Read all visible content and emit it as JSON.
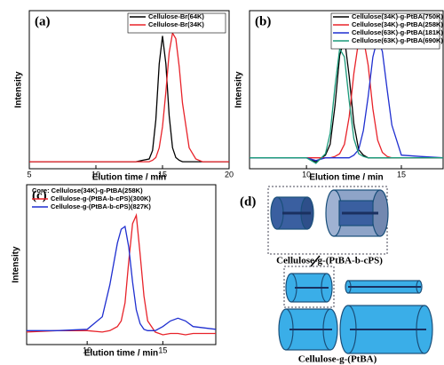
{
  "chart_data": [
    {
      "type": "line",
      "label": "(a)",
      "xlabel": "Elution time / min",
      "ylabel": "Intensity",
      "x": [
        5,
        8,
        10,
        12,
        13,
        13.5,
        14,
        14.25,
        14.5,
        14.75,
        15,
        15.25,
        15.5,
        15.75,
        16,
        16.25,
        16.5,
        17,
        17.5,
        18,
        20
      ],
      "series": [
        {
          "name": "Cellulose-Br(64K)",
          "color": "#000000",
          "values": [
            0,
            0,
            0,
            0,
            0,
            0.01,
            0.02,
            0.08,
            0.3,
            0.7,
            0.9,
            0.7,
            0.33,
            0.1,
            0.03,
            0.01,
            0,
            0,
            0,
            0,
            0
          ]
        },
        {
          "name": "Cellulose-Br(34K)",
          "color": "#e8232a",
          "values": [
            0,
            0,
            0,
            0,
            0,
            0,
            0,
            0.01,
            0.03,
            0.1,
            0.25,
            0.5,
            0.78,
            0.92,
            0.88,
            0.68,
            0.42,
            0.1,
            0.02,
            0,
            0
          ]
        }
      ],
      "xlim": [
        5,
        20
      ],
      "xticks": [
        5,
        10,
        15,
        20
      ],
      "ylim": [
        -0.05,
        1.08
      ],
      "legend": "upper right"
    },
    {
      "type": "line",
      "label": "(b)",
      "xlabel": "Elution time / min",
      "ylabel": "Intensity",
      "x": [
        7,
        8,
        9,
        10,
        10.5,
        11,
        11.25,
        11.5,
        11.75,
        12,
        12.25,
        12.5,
        12.75,
        13,
        13.25,
        13.5,
        13.75,
        14,
        14.25,
        14.5,
        15,
        16,
        17.2
      ],
      "series": [
        {
          "name": "Cellulose(34K)-g-PtBA(750K)",
          "color": "#000000",
          "values": [
            0,
            0,
            0,
            0,
            -0.03,
            0.02,
            0.1,
            0.38,
            0.75,
            0.88,
            0.6,
            0.25,
            0.06,
            0.02,
            0,
            0,
            0,
            0,
            0,
            0,
            0,
            0,
            0
          ]
        },
        {
          "name": "Cellulose(34K)-g-PtBA(258K)",
          "color": "#e8232a",
          "values": [
            0,
            0,
            0,
            0,
            0,
            0,
            0,
            0.01,
            0.03,
            0.1,
            0.3,
            0.62,
            0.86,
            0.88,
            0.68,
            0.36,
            0.13,
            0.04,
            0.01,
            0,
            0,
            0,
            0
          ]
        },
        {
          "name": "Cellulose(63K)-g-PtBA(181K)",
          "color": "#1f2fd0",
          "values": [
            0,
            0,
            0,
            0,
            -0.02,
            0,
            0,
            0,
            0,
            0,
            0,
            0.02,
            0.06,
            0.2,
            0.45,
            0.74,
            0.88,
            0.78,
            0.5,
            0.24,
            0.02,
            0.01,
            0
          ]
        },
        {
          "name": "Cellulose(63K)-g-PtBA(690K)",
          "color": "#1a9a7a",
          "values": [
            0,
            0,
            0,
            0,
            -0.04,
            0.03,
            0.18,
            0.52,
            0.8,
            0.74,
            0.42,
            0.14,
            0.03,
            0.01,
            0,
            0,
            0,
            0,
            0,
            0,
            0,
            0,
            0
          ]
        }
      ],
      "xlim": [
        7,
        17.2
      ],
      "xticks": [
        10,
        15
      ],
      "ylim": [
        -0.08,
        1.08
      ],
      "legend": "upper right"
    },
    {
      "type": "line",
      "label": "(c)",
      "xlabel": "Elution time / min",
      "ylabel": "Intensity",
      "legend_title": "Core: Cellulose(34K)-g-PtBA(258K)",
      "x": [
        6,
        8,
        10,
        11,
        11.5,
        12,
        12.25,
        12.5,
        12.75,
        13,
        13.25,
        13.5,
        13.75,
        14,
        14.5,
        15,
        15.5,
        16,
        16.5,
        17,
        18.5
      ],
      "series": [
        {
          "name": "Cellulose-g-(PtBA-b-cPS)(300K)",
          "color": "#e8232a",
          "values": [
            0.04,
            0.05,
            0.05,
            0.04,
            0.05,
            0.08,
            0.12,
            0.25,
            0.55,
            0.82,
            0.88,
            0.6,
            0.3,
            0.12,
            0.04,
            0.02,
            0.03,
            0.03,
            0.02,
            0.03,
            0.03
          ]
        },
        {
          "name": "Cellulose-g-(PtBA-b-cPS)(827K)",
          "color": "#1f2fd0",
          "values": [
            0.05,
            0.05,
            0.06,
            0.15,
            0.38,
            0.68,
            0.78,
            0.8,
            0.65,
            0.4,
            0.2,
            0.1,
            0.06,
            0.05,
            0.05,
            0.08,
            0.12,
            0.14,
            0.12,
            0.08,
            0.06
          ]
        }
      ],
      "xlim": [
        6,
        18.5
      ],
      "xticks": [
        10,
        15
      ],
      "ylim": [
        -0.05,
        1.1
      ],
      "legend": "upper right"
    }
  ],
  "diagram": {
    "label": "(d)",
    "top_caption": "Cellulose-g-(PtBA-b-cPS)",
    "bottom_caption": "Cellulose-g-(PtBA)"
  }
}
